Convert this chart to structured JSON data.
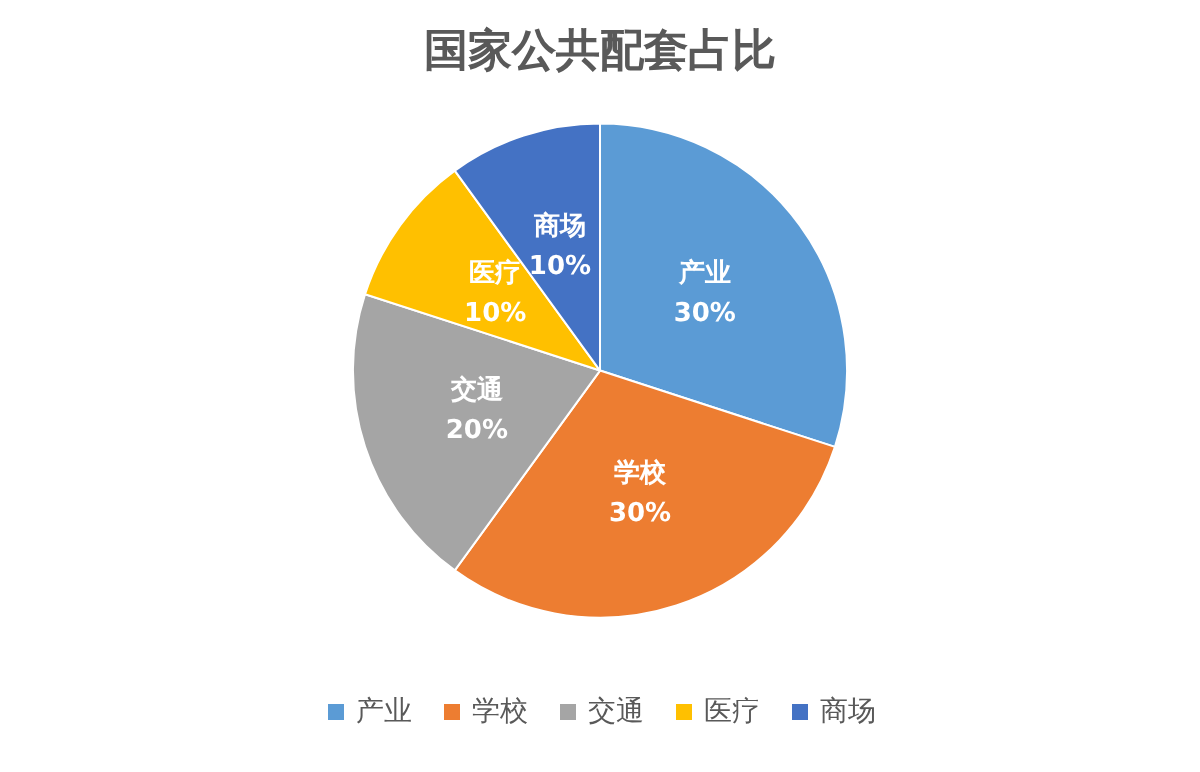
{
  "chart_data": {
    "type": "pie",
    "title": "国家公共配套占比",
    "categories": [
      "产业",
      "学校",
      "交通",
      "医疗",
      "商场"
    ],
    "values": [
      30,
      30,
      20,
      10,
      10
    ],
    "colors": [
      "#5b9bd5",
      "#ed7d31",
      "#a5a5a5",
      "#ffc000",
      "#4472c4"
    ],
    "value_labels": [
      "30%",
      "30%",
      "20%",
      "10%",
      "10%"
    ],
    "legend": "bottom"
  }
}
